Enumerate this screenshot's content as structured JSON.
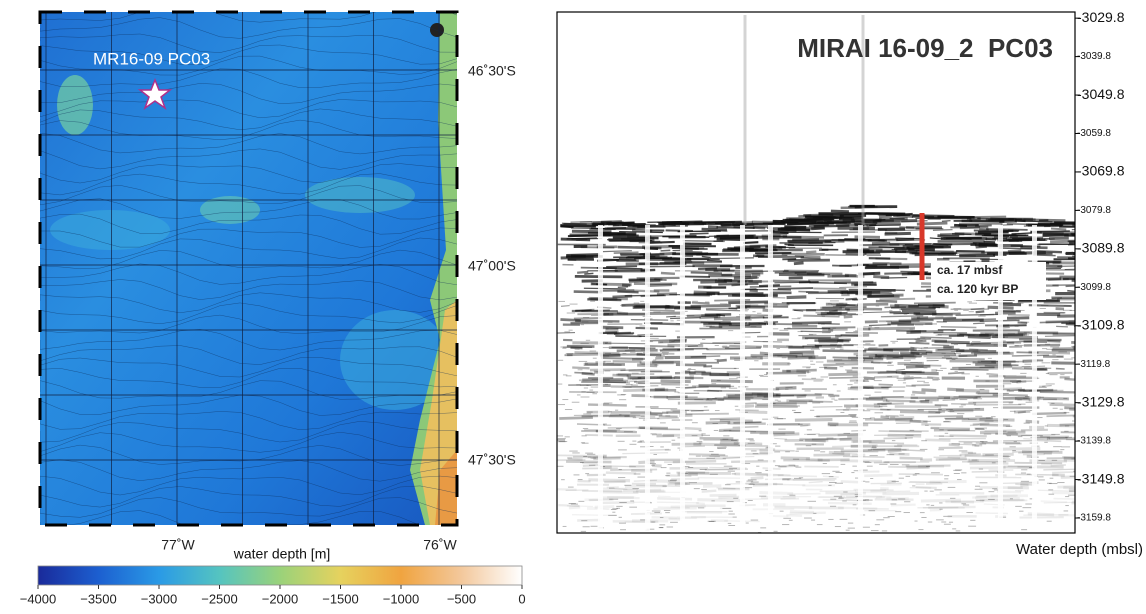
{
  "map": {
    "site_label": "MR16-09 PC03",
    "lat_labels": [
      "46˚30'S",
      "47˚00'S",
      "47˚30'S"
    ],
    "lon_labels": [
      "77˚W",
      "76˚W"
    ]
  },
  "colorbar": {
    "title": "water depth [m]",
    "range": [
      -4000,
      0
    ],
    "ticks": [
      {
        "value": -4000,
        "label": "−4000"
      },
      {
        "value": -3500,
        "label": "−3500"
      },
      {
        "value": -3000,
        "label": "−3000"
      },
      {
        "value": -2500,
        "label": "−2500"
      },
      {
        "value": -2000,
        "label": "−2000"
      },
      {
        "value": -1500,
        "label": "−1500"
      },
      {
        "value": -1000,
        "label": "−1000"
      },
      {
        "value": -500,
        "label": "−500"
      },
      0
    ]
  },
  "profile": {
    "title": "MIRAI 16-09_2  PC03",
    "ylim": [
      -3028.2,
      -3163.7
    ],
    "yticks": [
      -3029.8,
      -3039.8,
      -3049.8,
      -3059.8,
      -3069.8,
      -3079.8,
      -3089.8,
      -3099.8,
      -3109.8,
      -3119.8,
      -3129.8,
      -3139.8,
      -3149.8,
      -3159.8
    ],
    "annotation": [
      "ca. 17 mbsf",
      "ca. 120 kyr BP"
    ],
    "axis_label": "Water depth (mbsl)"
  }
}
